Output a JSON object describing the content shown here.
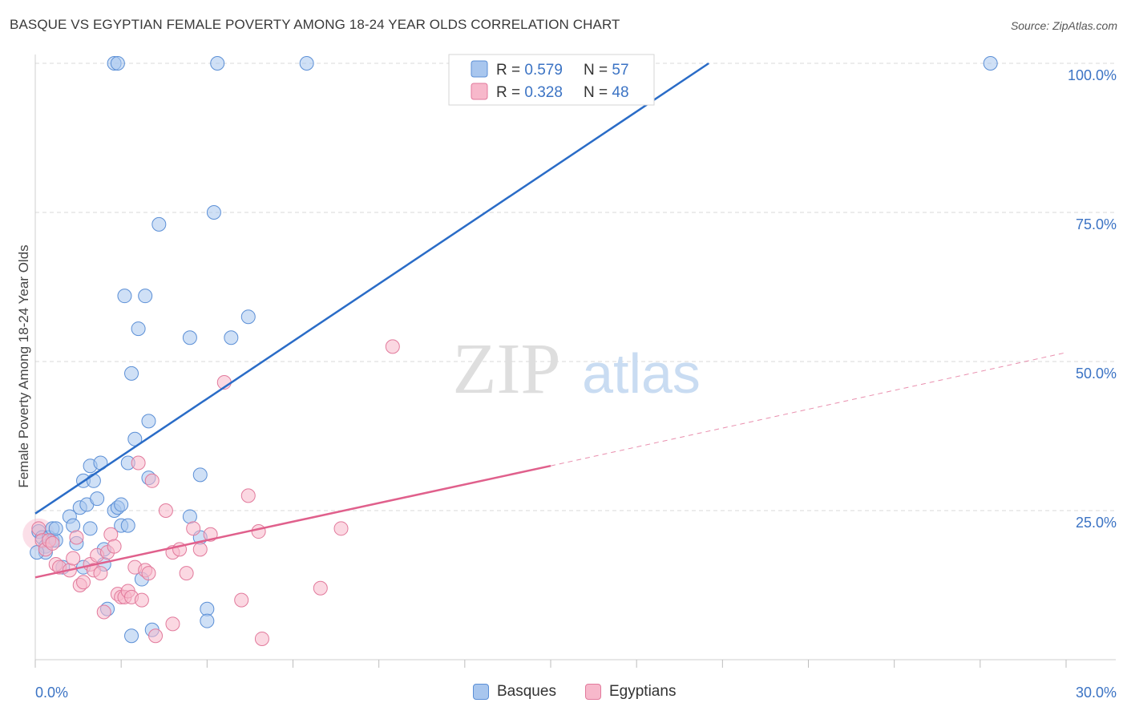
{
  "title": "BASQUE VS EGYPTIAN FEMALE POVERTY AMONG 18-24 YEAR OLDS CORRELATION CHART",
  "source": "Source: ZipAtlas.com",
  "watermark": {
    "zip": "ZIP",
    "atlas": "atlas"
  },
  "colors": {
    "basques_fill": "#a8c6ee",
    "basques_stroke": "#5b8fd6",
    "basques_line": "#2a6cc7",
    "egyptians_fill": "#f7b8cb",
    "egyptians_stroke": "#e27a9c",
    "egyptians_line": "#e0608c",
    "axis_label": "#3b73c4",
    "grid": "#d8d8d8"
  },
  "legend_top": [
    {
      "r_label": "R = ",
      "r_value": "0.579",
      "n_label": "N = ",
      "n_value": "57"
    },
    {
      "r_label": "R = ",
      "r_value": "0.328",
      "n_label": "N = ",
      "n_value": "48"
    }
  ],
  "legend_bottom": [
    "Basques",
    "Egyptians"
  ],
  "chart_data": {
    "type": "scatter",
    "title": "BASQUE VS EGYPTIAN FEMALE POVERTY AMONG 18-24 YEAR OLDS CORRELATION CHART",
    "xlabel": "",
    "ylabel": "Female Poverty Among 18-24 Year Olds",
    "xlim": [
      0,
      30
    ],
    "ylim": [
      0,
      100
    ],
    "x_tick_labels": [
      "0.0%",
      "30.0%"
    ],
    "y_tick_labels": [
      "25.0%",
      "50.0%",
      "75.0%",
      "100.0%"
    ],
    "y_ticks": [
      25,
      50,
      75,
      100
    ],
    "grid": true,
    "legend": "top-center",
    "series": [
      {
        "name": "Basques",
        "r": 0.579,
        "n": 57,
        "trend": {
          "x": [
            0,
            19.6
          ],
          "y": [
            24.5,
            100
          ],
          "dashed_to": null
        },
        "points": [
          [
            0.1,
            21.5
          ],
          [
            0.2,
            20.5
          ],
          [
            0.3,
            19
          ],
          [
            0.3,
            18
          ],
          [
            0.4,
            20.5
          ],
          [
            0.5,
            22
          ],
          [
            0.5,
            20
          ],
          [
            0.6,
            20
          ],
          [
            0.6,
            22
          ],
          [
            0.8,
            15.5
          ],
          [
            1.0,
            24
          ],
          [
            1.1,
            22.5
          ],
          [
            1.2,
            19.5
          ],
          [
            1.3,
            25.5
          ],
          [
            1.4,
            15.5
          ],
          [
            1.4,
            30
          ],
          [
            1.5,
            26
          ],
          [
            1.6,
            32.5
          ],
          [
            1.6,
            22
          ],
          [
            1.7,
            30
          ],
          [
            1.8,
            27
          ],
          [
            1.9,
            33
          ],
          [
            2.0,
            18.5
          ],
          [
            2.0,
            16
          ],
          [
            2.1,
            8.5
          ],
          [
            2.3,
            25
          ],
          [
            2.4,
            25.5
          ],
          [
            2.5,
            26
          ],
          [
            2.5,
            22.5
          ],
          [
            2.7,
            22.5
          ],
          [
            2.8,
            4
          ],
          [
            2.3,
            100
          ],
          [
            2.4,
            100
          ],
          [
            2.6,
            61
          ],
          [
            2.7,
            33
          ],
          [
            2.8,
            48
          ],
          [
            2.9,
            37
          ],
          [
            3.0,
            55.5
          ],
          [
            3.1,
            13.5
          ],
          [
            3.2,
            61
          ],
          [
            3.3,
            40
          ],
          [
            3.3,
            30.5
          ],
          [
            3.4,
            5
          ],
          [
            3.6,
            73
          ],
          [
            4.5,
            54
          ],
          [
            4.5,
            24
          ],
          [
            4.8,
            31
          ],
          [
            4.8,
            20.5
          ],
          [
            5.0,
            8.5
          ],
          [
            5.0,
            6.5
          ],
          [
            5.2,
            75
          ],
          [
            5.3,
            100
          ],
          [
            5.7,
            54
          ],
          [
            6.2,
            57.5
          ],
          [
            7.9,
            100
          ],
          [
            27.8,
            100
          ],
          [
            0.05,
            18
          ]
        ]
      },
      {
        "name": "Egyptians",
        "r": 0.328,
        "n": 48,
        "trend": {
          "x": [
            0,
            15
          ],
          "y": [
            13.8,
            32.5
          ],
          "dashed_to": [
            30,
            51.5
          ]
        },
        "points": [
          [
            0.1,
            22
          ],
          [
            0.2,
            20
          ],
          [
            0.3,
            18.5
          ],
          [
            0.4,
            20
          ],
          [
            0.5,
            19.5
          ],
          [
            0.6,
            16
          ],
          [
            0.7,
            15.5
          ],
          [
            1.0,
            15
          ],
          [
            1.1,
            17
          ],
          [
            1.2,
            20.5
          ],
          [
            1.3,
            12.5
          ],
          [
            1.4,
            13
          ],
          [
            1.6,
            16
          ],
          [
            1.7,
            15
          ],
          [
            1.8,
            17.5
          ],
          [
            1.9,
            14.5
          ],
          [
            2.0,
            8
          ],
          [
            2.1,
            18
          ],
          [
            2.2,
            21
          ],
          [
            2.3,
            19
          ],
          [
            2.4,
            11
          ],
          [
            2.5,
            10.5
          ],
          [
            2.6,
            10.5
          ],
          [
            2.7,
            11.5
          ],
          [
            2.8,
            10.5
          ],
          [
            2.9,
            15.5
          ],
          [
            3.0,
            33
          ],
          [
            3.1,
            10
          ],
          [
            3.2,
            15
          ],
          [
            3.3,
            14.5
          ],
          [
            3.4,
            30
          ],
          [
            3.5,
            4
          ],
          [
            3.8,
            25
          ],
          [
            4.0,
            6
          ],
          [
            4.0,
            18
          ],
          [
            4.2,
            18.5
          ],
          [
            4.4,
            14.5
          ],
          [
            4.6,
            22
          ],
          [
            4.8,
            18.5
          ],
          [
            5.1,
            21
          ],
          [
            5.5,
            46.5
          ],
          [
            6.0,
            10
          ],
          [
            6.2,
            27.5
          ],
          [
            6.5,
            21.5
          ],
          [
            6.6,
            3.5
          ],
          [
            8.3,
            12
          ],
          [
            8.9,
            22
          ],
          [
            10.4,
            52.5
          ]
        ]
      }
    ]
  }
}
